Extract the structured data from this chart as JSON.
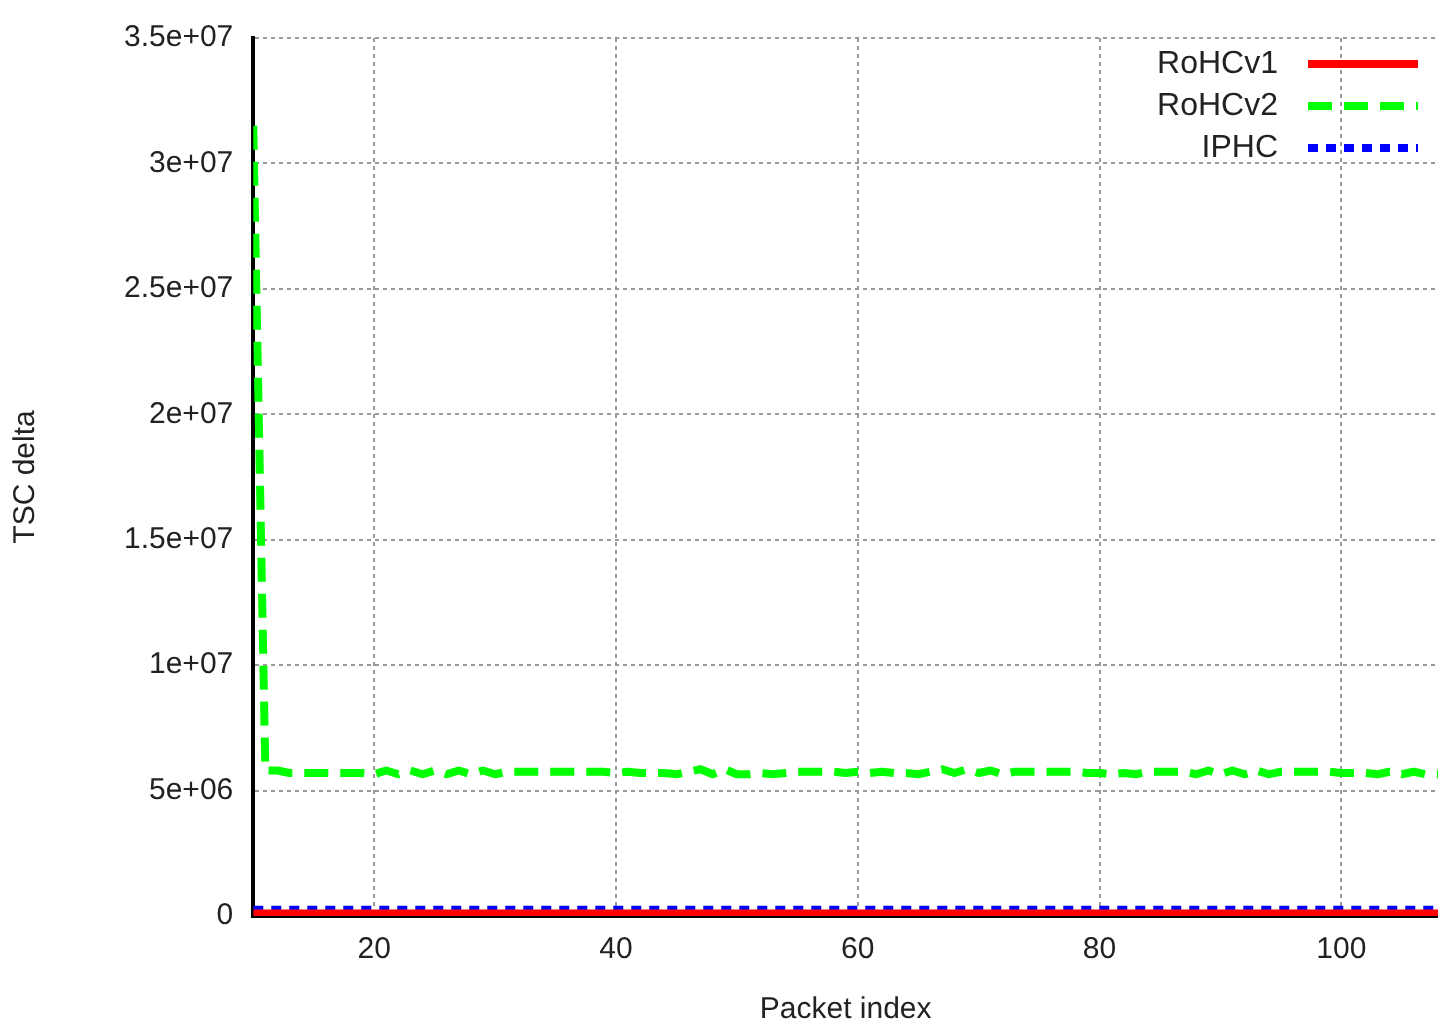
{
  "chart_data": {
    "type": "line",
    "xlabel": "Packet index",
    "ylabel": "TSC delta",
    "grid": true,
    "legend": "top right",
    "marker": "none",
    "x": [
      10,
      11,
      12,
      13,
      14,
      15,
      16,
      17,
      18,
      19,
      20,
      21,
      22,
      23,
      24,
      25,
      26,
      27,
      28,
      29,
      30,
      31,
      32,
      33,
      34,
      35,
      36,
      37,
      38,
      39,
      40,
      41,
      42,
      43,
      44,
      45,
      46,
      47,
      48,
      49,
      50,
      51,
      52,
      53,
      54,
      55,
      56,
      57,
      58,
      59,
      60,
      61,
      62,
      63,
      64,
      65,
      66,
      67,
      68,
      69,
      70,
      71,
      72,
      73,
      74,
      75,
      76,
      77,
      78,
      79,
      80,
      81,
      82,
      83,
      84,
      85,
      86,
      87,
      88,
      89,
      90,
      91,
      92,
      93,
      94,
      95,
      96,
      97,
      98,
      99,
      100,
      101,
      102,
      103,
      104,
      105,
      106,
      107,
      108
    ],
    "xlim": [
      10,
      108
    ],
    "xticks": [
      20,
      40,
      60,
      80,
      100
    ],
    "ylim": [
      0,
      35000000
    ],
    "yticks": [
      0,
      {
        "value": 5000000,
        "label": "5e+06"
      },
      {
        "value": 10000000,
        "label": "1e+07"
      },
      {
        "value": 15000000,
        "label": "1.5e+07"
      },
      {
        "value": 20000000,
        "label": "2e+07"
      },
      {
        "value": 25000000,
        "label": "2.5e+07"
      },
      {
        "value": 30000000,
        "label": "3e+07"
      },
      {
        "value": 35000000,
        "label": "3.5e+07"
      }
    ],
    "series": [
      {
        "name": "RoHCv1",
        "color": "#ff0000",
        "line_style": "solid",
        "values": [
          100000,
          100000,
          100000,
          100000,
          100000,
          100000,
          100000,
          100000,
          100000,
          100000,
          100000,
          100000,
          100000,
          100000,
          100000,
          100000,
          100000,
          100000,
          100000,
          100000,
          100000,
          100000,
          100000,
          100000,
          100000,
          100000,
          100000,
          100000,
          100000,
          100000,
          100000,
          100000,
          100000,
          100000,
          100000,
          100000,
          100000,
          100000,
          100000,
          100000,
          100000,
          100000,
          100000,
          100000,
          100000,
          100000,
          100000,
          100000,
          100000,
          100000,
          100000,
          100000,
          100000,
          100000,
          100000,
          100000,
          100000,
          100000,
          100000,
          100000,
          100000,
          100000,
          100000,
          100000,
          100000,
          100000,
          100000,
          100000,
          100000,
          100000,
          100000,
          100000,
          100000,
          100000,
          100000,
          100000,
          100000,
          100000,
          100000,
          100000,
          100000,
          100000,
          100000,
          100000,
          100000,
          100000,
          100000,
          100000,
          100000,
          100000,
          100000,
          100000,
          100000,
          100000,
          100000,
          100000,
          100000,
          100000,
          100000
        ]
      },
      {
        "name": "RoHCv2",
        "color": "#00ff00",
        "line_style": "dashed",
        "values": [
          31500000,
          5800000,
          5800000,
          5700000,
          5700000,
          5700000,
          5700000,
          5700000,
          5700000,
          5700000,
          5650000,
          5800000,
          5650000,
          5800000,
          5650000,
          5800000,
          5650000,
          5800000,
          5650000,
          5800000,
          5650000,
          5750000,
          5750000,
          5750000,
          5750000,
          5750000,
          5750000,
          5750000,
          5750000,
          5750000,
          5700000,
          5750000,
          5700000,
          5700000,
          5700000,
          5650000,
          5750000,
          5850000,
          5650000,
          5850000,
          5650000,
          5650000,
          5700000,
          5650000,
          5700000,
          5750000,
          5750000,
          5750000,
          5750000,
          5700000,
          5750000,
          5700000,
          5750000,
          5700000,
          5700000,
          5650000,
          5750000,
          5850000,
          5700000,
          5850000,
          5700000,
          5800000,
          5650000,
          5750000,
          5750000,
          5750000,
          5750000,
          5750000,
          5750000,
          5700000,
          5700000,
          5650000,
          5700000,
          5650000,
          5750000,
          5750000,
          5750000,
          5750000,
          5650000,
          5800000,
          5650000,
          5800000,
          5650000,
          5800000,
          5650000,
          5750000,
          5750000,
          5750000,
          5750000,
          5750000,
          5700000,
          5700000,
          5700000,
          5650000,
          5750000,
          5650000,
          5750000,
          5650000,
          5650000
        ]
      },
      {
        "name": "IPHC",
        "color": "#0000ff",
        "line_style": "dotted",
        "values": [
          250000,
          250000,
          250000,
          250000,
          250000,
          250000,
          250000,
          250000,
          250000,
          250000,
          250000,
          250000,
          250000,
          250000,
          250000,
          250000,
          250000,
          250000,
          250000,
          250000,
          250000,
          250000,
          250000,
          250000,
          250000,
          250000,
          250000,
          250000,
          250000,
          250000,
          250000,
          250000,
          250000,
          250000,
          250000,
          250000,
          250000,
          250000,
          250000,
          250000,
          250000,
          250000,
          250000,
          250000,
          250000,
          250000,
          250000,
          250000,
          250000,
          250000,
          250000,
          250000,
          250000,
          250000,
          250000,
          250000,
          250000,
          250000,
          250000,
          250000,
          250000,
          250000,
          250000,
          250000,
          250000,
          250000,
          250000,
          250000,
          250000,
          250000,
          250000,
          250000,
          250000,
          250000,
          250000,
          250000,
          250000,
          250000,
          250000,
          250000,
          250000,
          250000,
          250000,
          250000,
          250000,
          250000,
          250000,
          250000,
          250000,
          250000,
          250000,
          250000,
          250000,
          250000,
          250000,
          250000,
          250000,
          250000,
          250000
        ]
      }
    ]
  }
}
